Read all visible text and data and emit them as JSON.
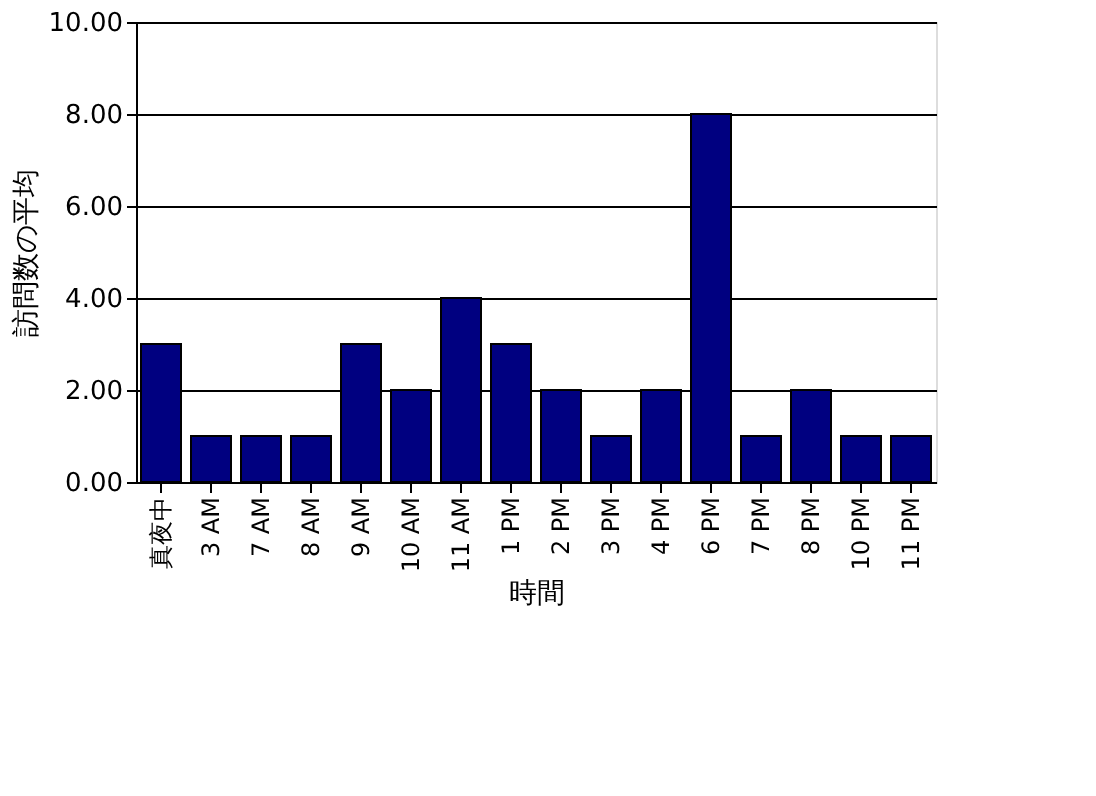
{
  "chart_data": {
    "type": "bar",
    "xlabel": "時間",
    "ylabel": "訪問数の平均",
    "categories": [
      "真夜中",
      "3 AM",
      "7 AM",
      "8 AM",
      "9 AM",
      "10 AM",
      "11 AM",
      "1 PM",
      "2 PM",
      "3 PM",
      "4 PM",
      "6 PM",
      "7 PM",
      "8 PM",
      "10 PM",
      "11 PM"
    ],
    "values": [
      3,
      1,
      1,
      1,
      3,
      2,
      4,
      3,
      2,
      1,
      2,
      8,
      1,
      2,
      1,
      1
    ],
    "color": "#000080",
    "ylim": [
      0,
      10
    ],
    "yticks": [
      {
        "value": 0,
        "label": "0.00"
      },
      {
        "value": 2,
        "label": "2.00"
      },
      {
        "value": 4,
        "label": "4.00"
      },
      {
        "value": 6,
        "label": "6.00"
      },
      {
        "value": 8,
        "label": "8.00"
      },
      {
        "value": 10,
        "label": "10.00"
      }
    ],
    "grid": "y"
  }
}
